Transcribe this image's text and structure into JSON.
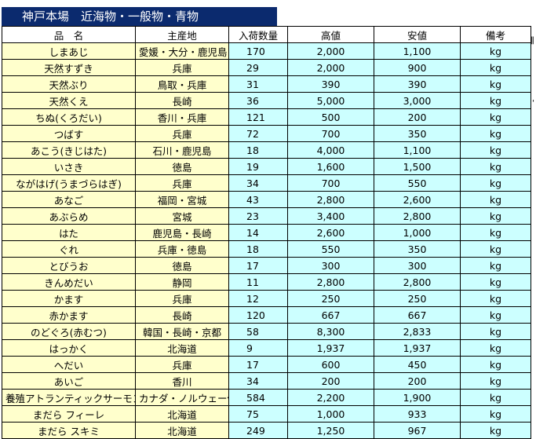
{
  "title": "神戸本場　近海物・一般物・青物",
  "headers": [
    "品　名",
    "主産地",
    "入荷数量",
    "高値",
    "安値",
    "備考"
  ],
  "rows": [
    {
      "name": "しまあじ",
      "origin": "愛媛・大分・鹿児島",
      "qty": "170",
      "high": "2,000",
      "low": "1,100",
      "unit": "kg"
    },
    {
      "name": "天然すずき",
      "origin": "兵庫",
      "qty": "29",
      "high": "2,000",
      "low": "900",
      "unit": "kg"
    },
    {
      "name": "天然ぶり",
      "origin": "鳥取・兵庫",
      "qty": "31",
      "high": "390",
      "low": "390",
      "unit": "kg"
    },
    {
      "name": "天然くえ",
      "origin": "長崎",
      "qty": "36",
      "high": "5,000",
      "low": "3,000",
      "unit": "kg"
    },
    {
      "name": "ちぬ(くろだい)",
      "origin": "香川・兵庫",
      "qty": "121",
      "high": "500",
      "low": "200",
      "unit": "kg"
    },
    {
      "name": "つばす",
      "origin": "兵庫",
      "qty": "72",
      "high": "700",
      "low": "350",
      "unit": "kg"
    },
    {
      "name": "あこう(きじはた)",
      "origin": "石川・鹿児島",
      "qty": "18",
      "high": "4,000",
      "low": "1,100",
      "unit": "kg"
    },
    {
      "name": "いさき",
      "origin": "徳島",
      "qty": "19",
      "high": "1,600",
      "low": "1,500",
      "unit": "kg"
    },
    {
      "name": "ながはげ(うまづらはぎ)",
      "origin": "兵庫",
      "qty": "34",
      "high": "700",
      "low": "550",
      "unit": "kg"
    },
    {
      "name": "あなご",
      "origin": "福岡・宮城",
      "qty": "43",
      "high": "2,800",
      "low": "2,600",
      "unit": "kg"
    },
    {
      "name": "あぶらめ",
      "origin": "宮城",
      "qty": "23",
      "high": "3,400",
      "low": "2,800",
      "unit": "kg"
    },
    {
      "name": "はた",
      "origin": "鹿児島・長崎",
      "qty": "14",
      "high": "2,600",
      "low": "1,000",
      "unit": "kg"
    },
    {
      "name": "ぐれ",
      "origin": "兵庫・徳島",
      "qty": "18",
      "high": "550",
      "low": "350",
      "unit": "kg"
    },
    {
      "name": "とびうお",
      "origin": "徳島",
      "qty": "17",
      "high": "300",
      "low": "300",
      "unit": "kg"
    },
    {
      "name": "きんめだい",
      "origin": "静岡",
      "qty": "11",
      "high": "2,800",
      "low": "2,800",
      "unit": "kg"
    },
    {
      "name": "かます",
      "origin": "兵庫",
      "qty": "12",
      "high": "250",
      "low": "250",
      "unit": "kg"
    },
    {
      "name": "赤かます",
      "origin": "長崎",
      "qty": "120",
      "high": "667",
      "low": "667",
      "unit": "kg"
    },
    {
      "name": "のどぐろ(赤むつ)",
      "origin": "韓国・長崎・京都",
      "qty": "58",
      "high": "8,300",
      "low": "2,833",
      "unit": "kg"
    },
    {
      "name": "はっかく",
      "origin": "北海道",
      "qty": "9",
      "high": "1,937",
      "low": "1,937",
      "unit": "kg"
    },
    {
      "name": "へだい",
      "origin": "兵庫",
      "qty": "17",
      "high": "600",
      "low": "450",
      "unit": "kg"
    },
    {
      "name": "あいご",
      "origin": "香川",
      "qty": "34",
      "high": "200",
      "low": "200",
      "unit": "kg"
    },
    {
      "name": "養殖アトランティックサーモン",
      "origin": "カナダ・ノルウェー他",
      "qty": "584",
      "high": "2,200",
      "low": "1,900",
      "unit": "kg"
    },
    {
      "name": "まだら フィーレ",
      "origin": "北海道",
      "qty": "75",
      "high": "1,000",
      "low": "933",
      "unit": "kg"
    },
    {
      "name": "まだら スキミ",
      "origin": "北海道",
      "qty": "249",
      "high": "1,250",
      "low": "967",
      "unit": "kg"
    }
  ],
  "side_marks": [
    "‖",
    "'"
  ]
}
